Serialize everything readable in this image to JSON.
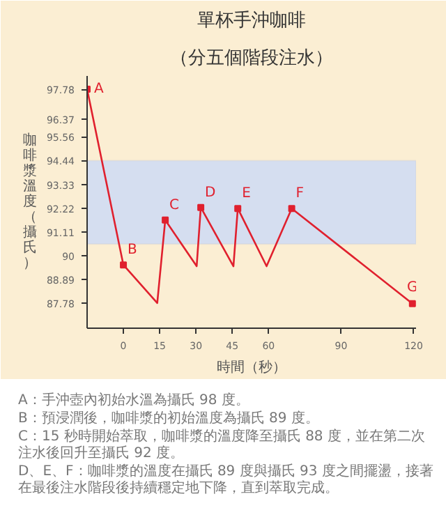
{
  "chart_data": {
    "type": "line",
    "title": "單杯手沖咖啡",
    "subtitle": "（分五個階段注水）",
    "xlabel": "時間（秒）",
    "ylabel": "咖啡漿溫度（攝氏）",
    "x": [
      -15,
      0,
      14,
      17.3,
      30.3,
      32,
      45.5,
      47.3,
      59.2,
      69.6,
      119.5
    ],
    "series": [
      {
        "color": "#e0202e",
        "values": [
          97.78,
          89.56,
          87.78,
          91.66,
          89.5,
          92.25,
          89.5,
          92.2,
          89.5,
          92.2,
          87.75
        ]
      }
    ],
    "xlim": [
      -15,
      121
    ],
    "ylim": [
      86.6,
      98.4
    ],
    "xticks": [
      0,
      15,
      30,
      45,
      60,
      90,
      120
    ],
    "yticks": [
      97.78,
      96.37,
      95.56,
      94.44,
      93.33,
      92.22,
      91.11,
      90,
      88.89,
      87.78
    ],
    "bands": [
      {
        "axis": "y",
        "from": 90.54,
        "to": 94.44,
        "color": "#d5def0"
      }
    ],
    "grid": false,
    "marker": "square",
    "line_style": "solid",
    "annotations": [
      {
        "text": "A",
        "x": -15,
        "y": 97.78
      },
      {
        "text": "B",
        "x": 0,
        "y": 89.56
      },
      {
        "text": "C",
        "x": 17.3,
        "y": 91.66
      },
      {
        "text": "D",
        "x": 32,
        "y": 92.25
      },
      {
        "text": "E",
        "x": 47.3,
        "y": 92.2
      },
      {
        "text": "F",
        "x": 69.6,
        "y": 92.2
      },
      {
        "text": "G",
        "x": 119.5,
        "y": 87.75
      },
      "A：手沖壺內初始水溫為攝氏 98 度。",
      "B：預浸潤後，咖啡漿的初始溫度為攝氏 89 度。",
      "C：15 秒時開始萃取，咖啡漿的溫度降至攝氏 88 度，並在第二次注水後回升至攝氏 92 度。",
      "D、E、F：咖啡漿的溫度在攝氏 89 度與攝氏 93 度之間擺盪，接著在最後注水階段後持續穩定地下降，直到萃取完成。"
    ]
  }
}
